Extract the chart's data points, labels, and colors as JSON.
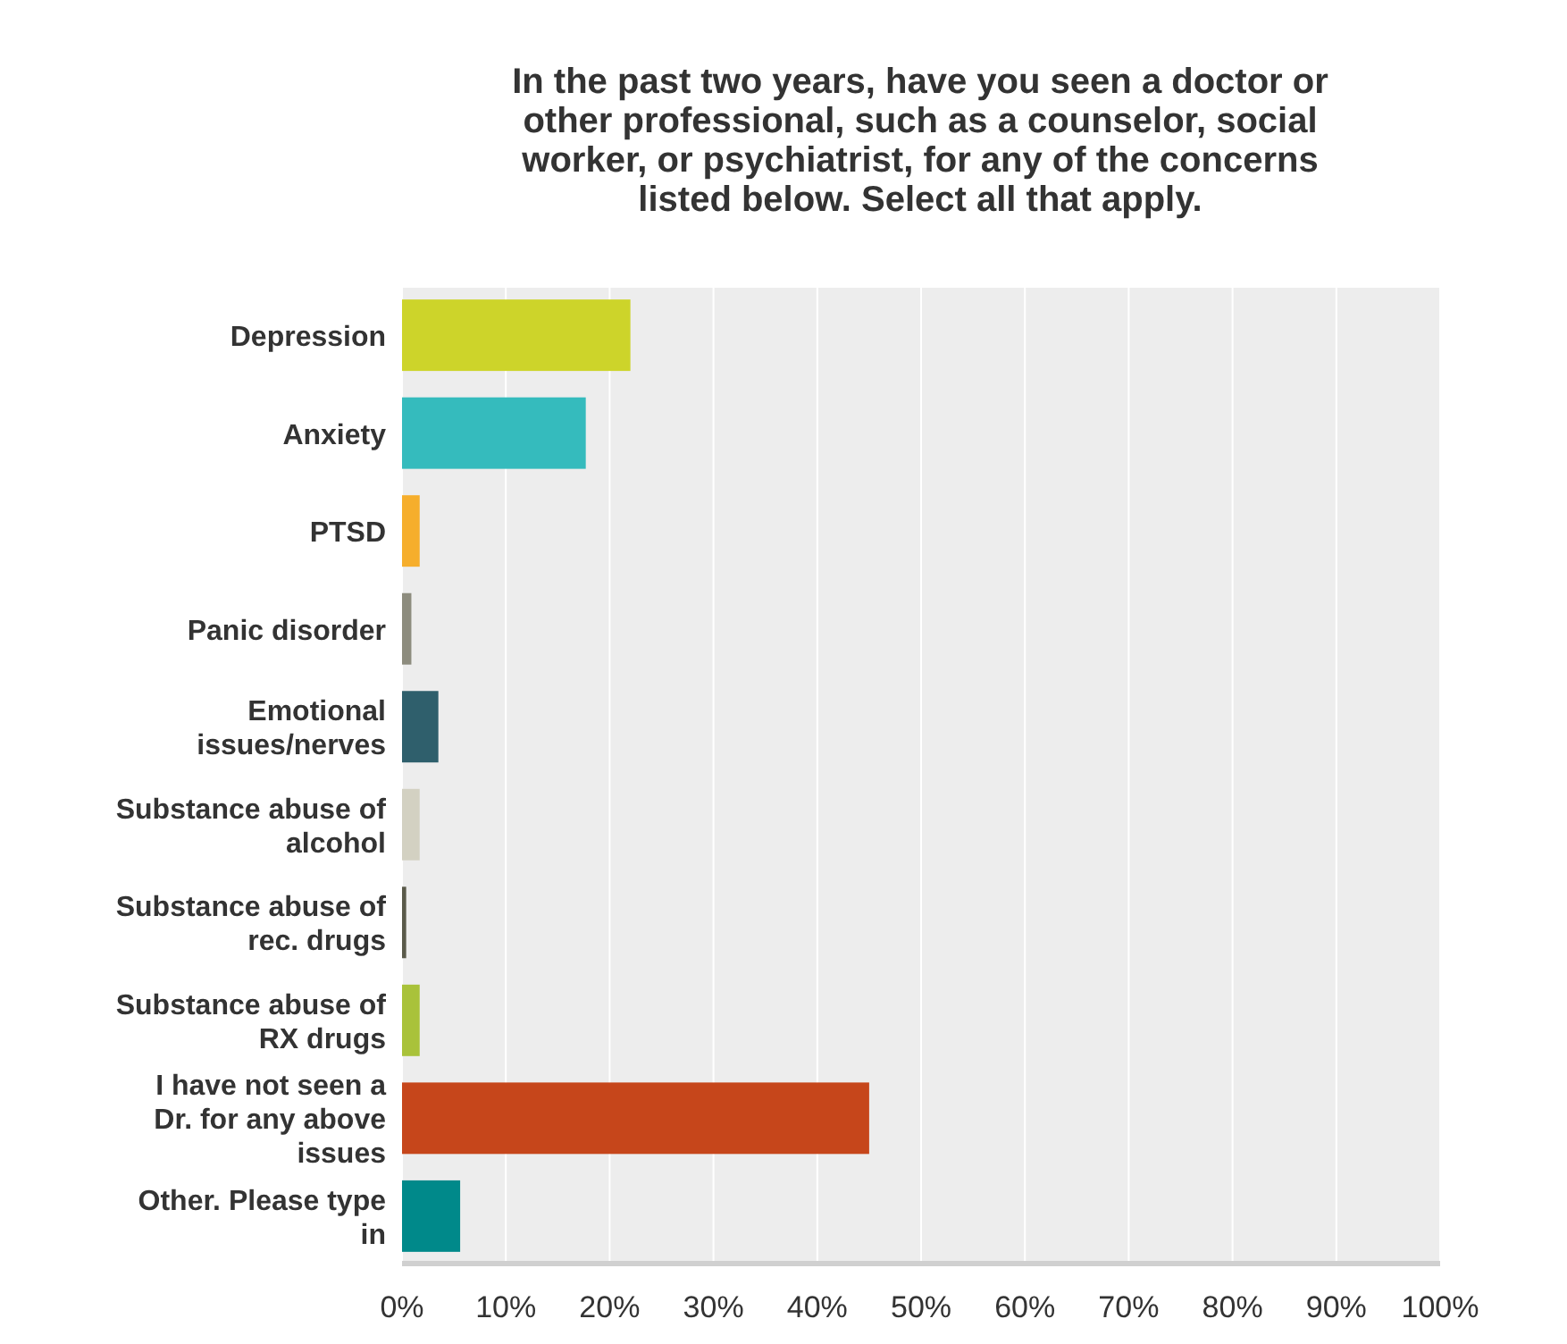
{
  "chart_data": {
    "type": "bar",
    "orientation": "horizontal",
    "title": "In the past  two years, have you seen a doctor or other professional, such as a counselor, social worker, or psychiatrist, for any of the concerns listed below. Select all that apply.",
    "categories": [
      "Depression",
      "Anxiety",
      "PTSD",
      "Panic disorder",
      "Emotional issues/nerves",
      "Substance abuse of alcohol",
      "Substance abuse of rec. drugs",
      "Substance abuse of RX drugs",
      "I have not seen a Dr. for any above issues",
      "Other. Please type in"
    ],
    "values": [
      22.0,
      17.7,
      1.7,
      0.9,
      3.5,
      1.7,
      0.4,
      1.7,
      45.0,
      5.6
    ],
    "colors": [
      "#cdd42a",
      "#35bbbd",
      "#f6ae2c",
      "#8d8c7e",
      "#2f5f6c",
      "#d3d1c2",
      "#5a5a4a",
      "#a9c23a",
      "#c6461b",
      "#00898a"
    ],
    "xlim": [
      0,
      100
    ],
    "xticks": [
      {
        "value": 0,
        "label": "0%"
      },
      {
        "value": 10,
        "label": "10%"
      },
      {
        "value": 20,
        "label": "20%"
      },
      {
        "value": 30,
        "label": "30%"
      },
      {
        "value": 40,
        "label": "40%"
      },
      {
        "value": 50,
        "label": "50%"
      },
      {
        "value": 60,
        "label": "60%"
      },
      {
        "value": 70,
        "label": "70%"
      },
      {
        "value": 80,
        "label": "80%"
      },
      {
        "value": 90,
        "label": "90%"
      },
      {
        "value": 100,
        "label": "100%"
      }
    ],
    "grid": "x"
  }
}
